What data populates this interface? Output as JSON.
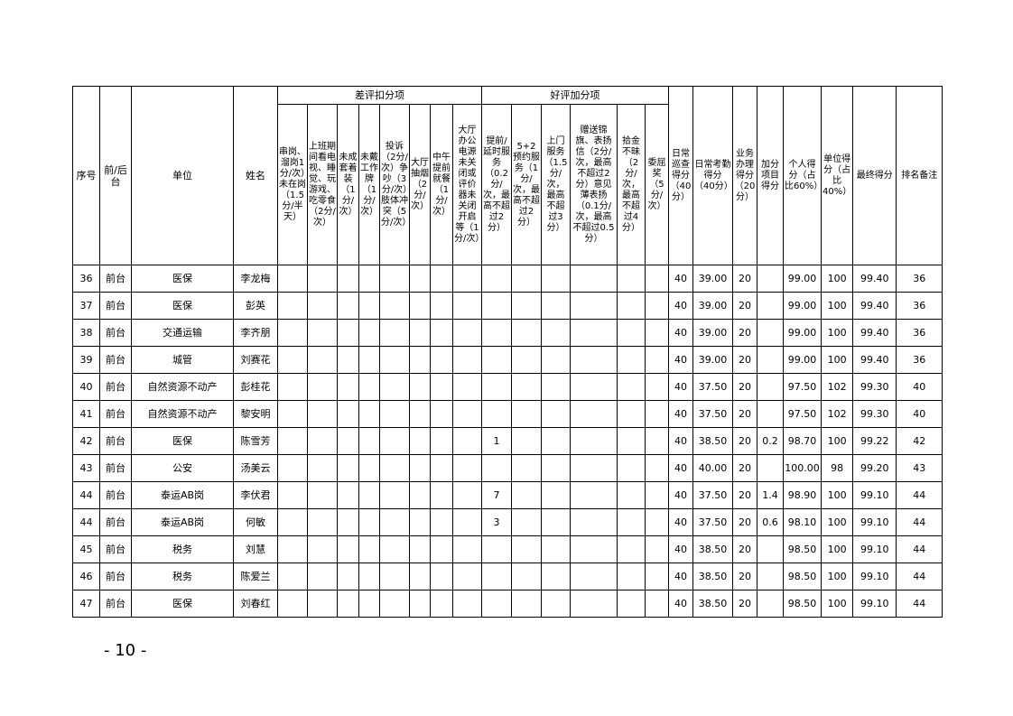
{
  "headers": {
    "seq": "序号",
    "fb": "前/后台",
    "unit": "单位",
    "name": "姓名",
    "deduct_group": "差评扣分项",
    "bonus_group": "好评加分项",
    "deduct": [
      "串岗、溜岗1分/次）未在岗（1.5分/半天）",
      "上班期间看电视、睡觉、玩游戏、吃零食（2分/次）",
      "未成套着装（1分/次）",
      "未戴工作牌（1分/次）",
      "投诉（2分/次）争吵（3分/次）肢体冲突（5分/次）",
      "大厅抽烟（2分/次）",
      "中午提前就餐（1分/次）",
      "大厅办公电源未关闭或评价器未关闭开启等（1分/次）"
    ],
    "bonus": [
      "提前/延时服务（0.2分/次，最高不超过2分）",
      "5+2预约服务（1分/次，最高不超过2分）",
      "上门服务（1.5分/次，最高不超过3分）",
      "赠送锦旗、表扬信（2分/次，最高不超过2分）意见薄表扬（0.1分/次，最高不超过0.5分）",
      "拾金不昧（2分/次，最高不超过4分）",
      "委屈奖（5分/次）"
    ],
    "tail": [
      "日常巡查得分（40分）",
      "日常考勤得分（40分）",
      "业务办理得分（20分）",
      "加分项目得分",
      "个人得分（占比60%）",
      "单位得分（占比40%）",
      "最终得分",
      "排名备注"
    ]
  },
  "rows": [
    {
      "seq": "36",
      "fb": "前台",
      "unit": "医保",
      "name": "李龙梅",
      "d": [
        "",
        "",
        "",
        "",
        "",
        "",
        "",
        ""
      ],
      "b": [
        "",
        "",
        "",
        "",
        "",
        ""
      ],
      "t": [
        "40",
        "39.00",
        "20",
        "",
        "99.00",
        "100",
        "99.40",
        "36"
      ]
    },
    {
      "seq": "37",
      "fb": "前台",
      "unit": "医保",
      "name": "彭英",
      "d": [
        "",
        "",
        "",
        "",
        "",
        "",
        "",
        ""
      ],
      "b": [
        "",
        "",
        "",
        "",
        "",
        ""
      ],
      "t": [
        "40",
        "39.00",
        "20",
        "",
        "99.00",
        "100",
        "99.40",
        "36"
      ]
    },
    {
      "seq": "38",
      "fb": "前台",
      "unit": "交通运输",
      "name": "李齐朋",
      "d": [
        "",
        "",
        "",
        "",
        "",
        "",
        "",
        ""
      ],
      "b": [
        "",
        "",
        "",
        "",
        "",
        ""
      ],
      "t": [
        "40",
        "39.00",
        "20",
        "",
        "99.00",
        "100",
        "99.40",
        "36"
      ]
    },
    {
      "seq": "39",
      "fb": "前台",
      "unit": "城管",
      "name": "刘赛花",
      "d": [
        "",
        "",
        "",
        "",
        "",
        "",
        "",
        ""
      ],
      "b": [
        "",
        "",
        "",
        "",
        "",
        ""
      ],
      "t": [
        "40",
        "39.00",
        "20",
        "",
        "99.00",
        "100",
        "99.40",
        "36"
      ]
    },
    {
      "seq": "40",
      "fb": "前台",
      "unit": "自然资源不动产",
      "name": "彭桂花",
      "d": [
        "",
        "",
        "",
        "",
        "",
        "",
        "",
        ""
      ],
      "b": [
        "",
        "",
        "",
        "",
        "",
        ""
      ],
      "t": [
        "40",
        "37.50",
        "20",
        "",
        "97.50",
        "102",
        "99.30",
        "40"
      ]
    },
    {
      "seq": "41",
      "fb": "前台",
      "unit": "自然资源不动产",
      "name": "黎安明",
      "d": [
        "",
        "",
        "",
        "",
        "",
        "",
        "",
        ""
      ],
      "b": [
        "",
        "",
        "",
        "",
        "",
        ""
      ],
      "t": [
        "40",
        "37.50",
        "20",
        "",
        "97.50",
        "102",
        "99.30",
        "40"
      ]
    },
    {
      "seq": "42",
      "fb": "前台",
      "unit": "医保",
      "name": "陈雪芳",
      "d": [
        "",
        "",
        "",
        "",
        "",
        "",
        "",
        ""
      ],
      "b": [
        "1",
        "",
        "",
        "",
        "",
        ""
      ],
      "t": [
        "40",
        "38.50",
        "20",
        "0.2",
        "98.70",
        "100",
        "99.22",
        "42"
      ]
    },
    {
      "seq": "43",
      "fb": "前台",
      "unit": "公安",
      "name": "汤美云",
      "d": [
        "",
        "",
        "",
        "",
        "",
        "",
        "",
        ""
      ],
      "b": [
        "",
        "",
        "",
        "",
        "",
        ""
      ],
      "t": [
        "40",
        "40.00",
        "20",
        "",
        "100.00",
        "98",
        "99.20",
        "43"
      ]
    },
    {
      "seq": "44",
      "fb": "前台",
      "unit": "泰运AB岗",
      "name": "李伏君",
      "d": [
        "",
        "",
        "",
        "",
        "",
        "",
        "",
        ""
      ],
      "b": [
        "7",
        "",
        "",
        "",
        "",
        ""
      ],
      "t": [
        "40",
        "37.50",
        "20",
        "1.4",
        "98.90",
        "100",
        "99.10",
        "44"
      ]
    },
    {
      "seq": "44",
      "fb": "前台",
      "unit": "泰运AB岗",
      "name": "何敏",
      "d": [
        "",
        "",
        "",
        "",
        "",
        "",
        "",
        ""
      ],
      "b": [
        "3",
        "",
        "",
        "",
        "",
        ""
      ],
      "t": [
        "40",
        "37.50",
        "20",
        "0.6",
        "98.10",
        "100",
        "99.10",
        "44"
      ]
    },
    {
      "seq": "45",
      "fb": "前台",
      "unit": "税务",
      "name": "刘慧",
      "d": [
        "",
        "",
        "",
        "",
        "",
        "",
        "",
        ""
      ],
      "b": [
        "",
        "",
        "",
        "",
        "",
        ""
      ],
      "t": [
        "40",
        "38.50",
        "20",
        "",
        "98.50",
        "100",
        "99.10",
        "44"
      ]
    },
    {
      "seq": "46",
      "fb": "前台",
      "unit": "税务",
      "name": "陈爱兰",
      "d": [
        "",
        "",
        "",
        "",
        "",
        "",
        "",
        ""
      ],
      "b": [
        "",
        "",
        "",
        "",
        "",
        ""
      ],
      "t": [
        "40",
        "38.50",
        "20",
        "",
        "98.50",
        "100",
        "99.10",
        "44"
      ]
    },
    {
      "seq": "47",
      "fb": "前台",
      "unit": "医保",
      "name": "刘春红",
      "d": [
        "",
        "",
        "",
        "",
        "",
        "",
        "",
        ""
      ],
      "b": [
        "",
        "",
        "",
        "",
        "",
        ""
      ],
      "t": [
        "40",
        "38.50",
        "20",
        "",
        "98.50",
        "100",
        "99.10",
        "44"
      ]
    }
  ],
  "page_number": "- 10 -"
}
